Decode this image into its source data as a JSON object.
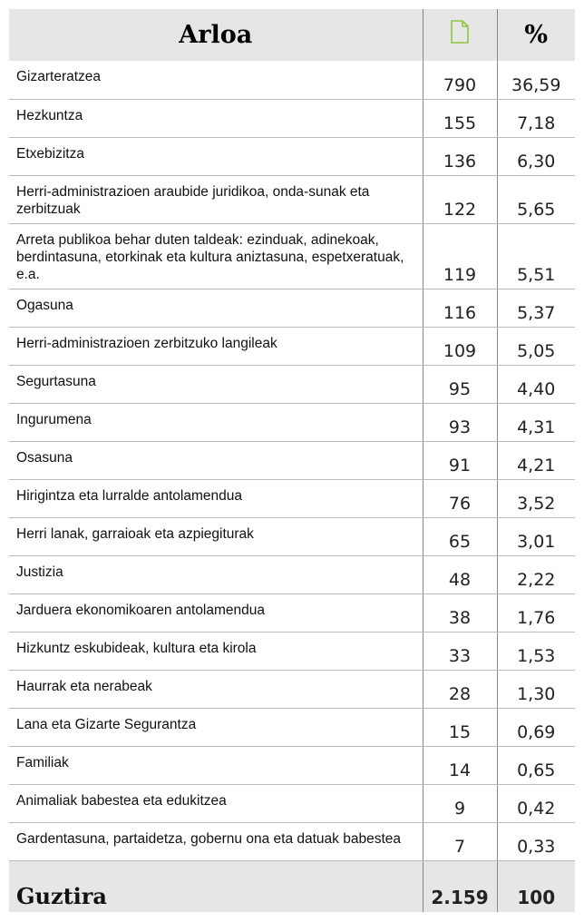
{
  "table": {
    "header": {
      "title": "Arloa",
      "percent": "%"
    },
    "rows": [
      [
        "Gizarteratzea",
        "790",
        "36,59"
      ],
      [
        "Hezkuntza",
        "155",
        "7,18"
      ],
      [
        "Etxebizitza",
        "136",
        "6,30"
      ],
      [
        "Herri-administrazioen araubide juridikoa, onda-sunak eta zerbitzuak",
        "122",
        "5,65"
      ],
      [
        "Arreta publikoa behar duten taldeak: ezinduak, adinekoak, berdintasuna, etorkinak eta kultura aniztasuna, espetxeratuak, e.a.",
        "119",
        "5,51"
      ],
      [
        "Ogasuna",
        "116",
        "5,37"
      ],
      [
        "Herri-administrazioen zerbitzuko langileak",
        "109",
        "5,05"
      ],
      [
        "Segurtasuna",
        "95",
        "4,40"
      ],
      [
        "Ingurumena",
        "93",
        "4,31"
      ],
      [
        "Osasuna",
        "91",
        "4,21"
      ],
      [
        "Hirigintza eta lurralde antolamendua",
        "76",
        "3,52"
      ],
      [
        "Herri lanak, garraioak eta azpiegiturak",
        "65",
        "3,01"
      ],
      [
        "Justizia",
        "48",
        "2,22"
      ],
      [
        "Jarduera ekonomikoaren antolamendua",
        "38",
        "1,76"
      ],
      [
        "Hizkuntz eskubideak, kultura eta kirola",
        "33",
        "1,53"
      ],
      [
        "Haurrak eta nerabeak",
        "28",
        "1,30"
      ],
      [
        "Lana eta Gizarte Segurantza",
        "15",
        "0,69"
      ],
      [
        "Familiak",
        "14",
        "0,65"
      ],
      [
        "Animaliak babestea eta edukitzea",
        "9",
        "0,42"
      ],
      [
        "Gardentasuna, partaidetza, gobernu ona eta datuak babestea",
        "7",
        "0,33"
      ]
    ],
    "total": [
      "Guztira",
      "2.159",
      "100"
    ]
  }
}
